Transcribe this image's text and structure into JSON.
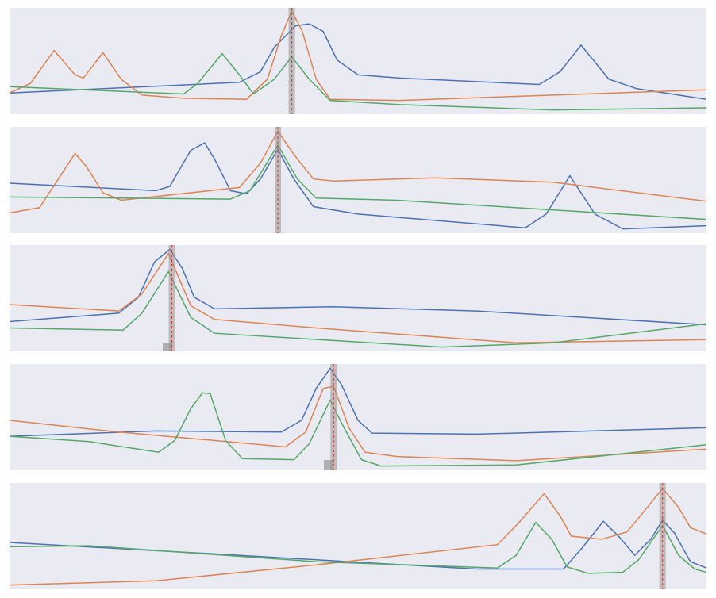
{
  "chart_data": [
    {
      "type": "line",
      "xlim": [
        0,
        100
      ],
      "ylim": [
        0,
        1
      ],
      "marker_x": 40.5,
      "series": [
        {
          "color": "#4c72b0",
          "x": [
            0,
            33,
            36,
            38,
            41,
            43,
            45,
            47,
            50,
            56,
            76,
            79,
            82,
            86,
            90,
            100
          ],
          "values": [
            0.2,
            0.3,
            0.4,
            0.63,
            0.83,
            0.85,
            0.78,
            0.51,
            0.37,
            0.34,
            0.28,
            0.4,
            0.65,
            0.33,
            0.24,
            0.14
          ]
        },
        {
          "color": "#dd8452",
          "x": [
            0,
            3,
            6.4,
            9.4,
            10.6,
            13.4,
            16,
            19,
            25,
            34,
            37,
            39,
            40.5,
            42,
            44,
            46,
            56,
            100
          ],
          "values": [
            0.2,
            0.29,
            0.6,
            0.37,
            0.34,
            0.58,
            0.33,
            0.18,
            0.15,
            0.14,
            0.33,
            0.74,
            0.97,
            0.78,
            0.33,
            0.14,
            0.13,
            0.23
          ]
        },
        {
          "color": "#55a868",
          "x": [
            0,
            25,
            27,
            30.5,
            33,
            35,
            38,
            40.5,
            43,
            46,
            56,
            78,
            100
          ],
          "values": [
            0.26,
            0.19,
            0.29,
            0.57,
            0.37,
            0.19,
            0.33,
            0.54,
            0.33,
            0.13,
            0.09,
            0.04,
            0.06
          ]
        }
      ]
    },
    {
      "type": "line",
      "xlim": [
        0,
        100
      ],
      "ylim": [
        0,
        1
      ],
      "marker_x": 38.5,
      "series": [
        {
          "color": "#4c72b0",
          "x": [
            0,
            21,
            23,
            26,
            28,
            29.4,
            31.7,
            34,
            36,
            38.5,
            40.8,
            43.6,
            50,
            74,
            77,
            80.4,
            84,
            88,
            100
          ],
          "values": [
            0.47,
            0.4,
            0.44,
            0.78,
            0.85,
            0.7,
            0.4,
            0.37,
            0.51,
            0.79,
            0.51,
            0.25,
            0.18,
            0.05,
            0.18,
            0.54,
            0.18,
            0.04,
            0.07
          ]
        },
        {
          "color": "#dd8452",
          "x": [
            0,
            4.3,
            7,
            9.4,
            11,
            13.4,
            16,
            33,
            36,
            38.5,
            40.8,
            43.6,
            46.5,
            61,
            78,
            100
          ],
          "values": [
            0.19,
            0.24,
            0.51,
            0.75,
            0.63,
            0.38,
            0.31,
            0.43,
            0.66,
            0.96,
            0.74,
            0.51,
            0.49,
            0.52,
            0.48,
            0.3
          ]
        },
        {
          "color": "#55a868",
          "x": [
            0,
            31.7,
            34.5,
            38.5,
            41.3,
            44,
            55.6,
            100
          ],
          "values": [
            0.34,
            0.32,
            0.4,
            0.83,
            0.51,
            0.33,
            0.31,
            0.13
          ]
        }
      ]
    },
    {
      "type": "line",
      "xlim": [
        0,
        100
      ],
      "ylim": [
        0,
        1
      ],
      "marker_x": 23.3,
      "series": [
        {
          "color": "#4c72b0",
          "x": [
            0,
            15.7,
            18.5,
            20.8,
            23,
            24.8,
            26.5,
            29.4,
            46.5,
            67,
            100
          ],
          "values": [
            0.28,
            0.36,
            0.51,
            0.84,
            0.96,
            0.78,
            0.51,
            0.4,
            0.42,
            0.38,
            0.25
          ]
        },
        {
          "color": "#dd8452",
          "x": [
            0,
            15.7,
            19,
            22.8,
            26,
            29.4,
            44,
            72.7,
            100
          ],
          "values": [
            0.44,
            0.38,
            0.54,
            0.92,
            0.43,
            0.3,
            0.22,
            0.08,
            0.11
          ]
        },
        {
          "color": "#55a868",
          "x": [
            0,
            16.3,
            19,
            22.8,
            26,
            29.4,
            62,
            78,
            100
          ],
          "values": [
            0.22,
            0.2,
            0.36,
            0.75,
            0.32,
            0.17,
            0.04,
            0.08,
            0.26
          ]
        }
      ]
    },
    {
      "type": "line",
      "xlim": [
        0,
        100
      ],
      "ylim": [
        0,
        1
      ],
      "marker_x": 46.5,
      "series": [
        {
          "color": "#4c72b0",
          "x": [
            0,
            21,
            39,
            41.9,
            44,
            46,
            47.6,
            50,
            52,
            67,
            100
          ],
          "values": [
            0.32,
            0.37,
            0.36,
            0.47,
            0.77,
            0.96,
            0.81,
            0.47,
            0.35,
            0.34,
            0.4
          ]
        },
        {
          "color": "#dd8452",
          "x": [
            0,
            15.7,
            33,
            39.6,
            42.5,
            45,
            46.5,
            48.7,
            51,
            55.6,
            72.7,
            100
          ],
          "values": [
            0.47,
            0.36,
            0.26,
            0.22,
            0.36,
            0.77,
            0.79,
            0.4,
            0.17,
            0.13,
            0.09,
            0.2
          ]
        },
        {
          "color": "#55a868",
          "x": [
            0,
            11.4,
            21.4,
            23.7,
            26,
            27.7,
            28.8,
            31,
            33.4,
            40.8,
            43,
            46,
            48,
            50.5,
            53.3,
            72.7,
            100
          ],
          "values": [
            0.32,
            0.27,
            0.17,
            0.28,
            0.58,
            0.73,
            0.72,
            0.28,
            0.11,
            0.1,
            0.25,
            0.66,
            0.4,
            0.1,
            0.04,
            0.05,
            0.24
          ]
        }
      ]
    },
    {
      "type": "line",
      "xlim": [
        0,
        100
      ],
      "ylim": [
        0,
        1
      ],
      "marker_x": 93.7,
      "series": [
        {
          "color": "#4c72b0",
          "x": [
            0,
            32.8,
            67,
            79.5,
            82.3,
            85.2,
            87.5,
            89.7,
            92,
            93.7,
            95.4,
            97.7,
            100
          ],
          "values": [
            0.44,
            0.32,
            0.19,
            0.19,
            0.4,
            0.64,
            0.49,
            0.32,
            0.47,
            0.65,
            0.53,
            0.26,
            0.2
          ]
        },
        {
          "color": "#dd8452",
          "x": [
            0,
            21,
            44,
            70,
            73,
            76.7,
            79,
            80.6,
            85,
            88.6,
            91.5,
            93.7,
            96,
            97.7,
            100
          ],
          "values": [
            0.04,
            0.08,
            0.23,
            0.42,
            0.62,
            0.9,
            0.69,
            0.5,
            0.47,
            0.54,
            0.77,
            0.95,
            0.77,
            0.58,
            0.52
          ]
        },
        {
          "color": "#55a868",
          "x": [
            0,
            11.4,
            44,
            70,
            72.7,
            75.5,
            77.8,
            80,
            83,
            88,
            90.3,
            93.7,
            96,
            98.3,
            100
          ],
          "values": [
            0.4,
            0.41,
            0.26,
            0.2,
            0.32,
            0.63,
            0.47,
            0.21,
            0.15,
            0.16,
            0.28,
            0.6,
            0.32,
            0.19,
            0.16
          ]
        }
      ]
    }
  ]
}
